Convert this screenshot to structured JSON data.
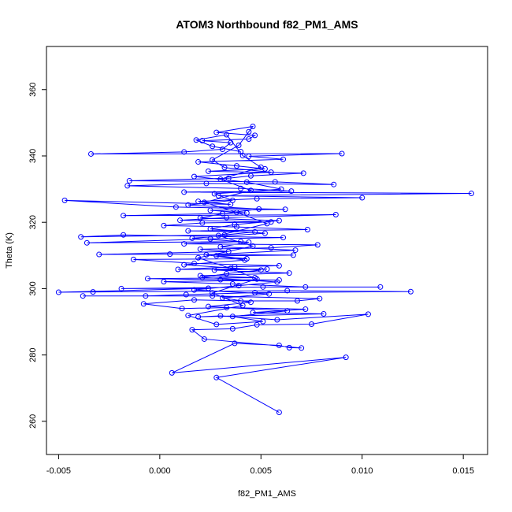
{
  "chart_data": {
    "type": "scatter",
    "title": "ATOM3 Northbound f82_PM1_AMS",
    "xlabel": "f82_PM1_AMS",
    "ylabel": "Theta (K)",
    "xlim": [
      -0.0056,
      0.0162
    ],
    "ylim": [
      250,
      373
    ],
    "xticks": [
      -0.005,
      0.0,
      0.005,
      0.01,
      0.015
    ],
    "xtick_labels": [
      "-0.005",
      "0.000",
      "0.005",
      "0.010",
      "0.015"
    ],
    "yticks": [
      260,
      280,
      300,
      320,
      340,
      360
    ],
    "ytick_labels": [
      "260",
      "280",
      "300",
      "320",
      "340",
      "360"
    ],
    "grid": false,
    "connect_points": true,
    "series": [
      {
        "color": "#0000ff",
        "marker": "open-circle",
        "points": [
          [
            0.0059,
            262.7
          ],
          [
            0.0028,
            273.2
          ],
          [
            0.0092,
            279.3
          ],
          [
            0.0006,
            274.6
          ],
          [
            0.0037,
            283.5
          ],
          [
            0.0059,
            282.9
          ],
          [
            0.0064,
            282.2
          ],
          [
            0.007,
            282.1
          ],
          [
            0.0022,
            284.8
          ],
          [
            0.0016,
            287.6
          ],
          [
            0.0036,
            287.9
          ],
          [
            0.0048,
            289.1
          ],
          [
            0.0075,
            289.3
          ],
          [
            0.0103,
            292.3
          ],
          [
            0.0058,
            290.6
          ],
          [
            0.003,
            291.8
          ],
          [
            0.0019,
            291.5
          ],
          [
            0.0081,
            292.4
          ],
          [
            0.0046,
            292.8
          ],
          [
            0.0072,
            293.8
          ],
          [
            0.0033,
            294.3
          ],
          [
            0.0011,
            294.0
          ],
          [
            -0.0008,
            295.4
          ],
          [
            0.0017,
            296.6
          ],
          [
            0.004,
            296.3
          ],
          [
            0.0068,
            296.3
          ],
          [
            0.0079,
            297.0
          ],
          [
            0.0026,
            297.8
          ],
          [
            -0.0038,
            297.8
          ],
          [
            -0.0007,
            297.8
          ],
          [
            0.0013,
            298.2
          ],
          [
            0.0047,
            298.8
          ],
          [
            0.0124,
            299.1
          ],
          [
            0.0063,
            299.4
          ],
          [
            -0.0033,
            299.0
          ],
          [
            -0.005,
            298.9
          ],
          [
            0.0024,
            300.1
          ],
          [
            -0.0019,
            300.0
          ],
          [
            0.0051,
            300.5
          ],
          [
            0.0109,
            300.5
          ],
          [
            0.0072,
            300.5
          ],
          [
            0.0036,
            301.4
          ],
          [
            0.0002,
            302.1
          ],
          [
            0.0059,
            302.6
          ],
          [
            0.003,
            302.7
          ],
          [
            -0.0006,
            303.0
          ],
          [
            0.0047,
            303.3
          ],
          [
            0.002,
            303.9
          ],
          [
            0.0064,
            304.7
          ],
          [
            0.0027,
            305.6
          ],
          [
            0.0053,
            305.9
          ],
          [
            0.0009,
            305.8
          ],
          [
            0.0037,
            306.6
          ],
          [
            0.0059,
            306.9
          ],
          [
            0.0017,
            307.6
          ],
          [
            -0.0013,
            308.8
          ],
          [
            0.0043,
            309.0
          ],
          [
            0.0028,
            309.9
          ],
          [
            0.0066,
            310.1
          ],
          [
            0.0005,
            310.4
          ],
          [
            -0.003,
            310.3
          ],
          [
            0.0034,
            311.2
          ],
          [
            0.002,
            311.9
          ],
          [
            0.0055,
            312.3
          ],
          [
            0.0078,
            313.2
          ],
          [
            0.0012,
            313.5
          ],
          [
            0.004,
            314.2
          ],
          [
            -0.0036,
            313.8
          ],
          [
            0.0025,
            315.0
          ],
          [
            0.0061,
            315.4
          ],
          [
            -0.0018,
            316.2
          ],
          [
            -0.0039,
            315.6
          ],
          [
            0.0032,
            316.2
          ],
          [
            0.0047,
            317.1
          ],
          [
            0.0014,
            317.4
          ],
          [
            0.0073,
            317.8
          ],
          [
            0.0038,
            318.6
          ],
          [
            0.0002,
            319.0
          ],
          [
            0.0021,
            319.8
          ],
          [
            0.0055,
            320.1
          ],
          [
            0.001,
            320.6
          ],
          [
            0.0033,
            321.4
          ],
          [
            0.0087,
            322.3
          ],
          [
            -0.0018,
            322.0
          ],
          [
            0.0043,
            322.8
          ],
          [
            0.0025,
            323.6
          ],
          [
            0.0062,
            323.9
          ],
          [
            0.0008,
            324.6
          ],
          [
            -0.0047,
            326.6
          ],
          [
            0.0035,
            325.4
          ],
          [
            0.0019,
            326.3
          ],
          [
            0.0048,
            327.1
          ],
          [
            0.01,
            327.4
          ],
          [
            0.0029,
            328.0
          ],
          [
            0.0154,
            328.7
          ],
          [
            0.0012,
            329.1
          ],
          [
            0.0065,
            329.4
          ],
          [
            0.004,
            330.2
          ],
          [
            -0.0016,
            331.0
          ],
          [
            0.0023,
            331.7
          ],
          [
            0.0086,
            331.4
          ],
          [
            0.0057,
            332.2
          ],
          [
            -0.0015,
            332.5
          ],
          [
            0.0034,
            333.3
          ],
          [
            0.0045,
            334.0
          ],
          [
            0.0071,
            334.8
          ],
          [
            0.0024,
            335.4
          ],
          [
            0.0052,
            336.1
          ],
          [
            0.0038,
            337.0
          ],
          [
            0.0019,
            338.2
          ],
          [
            0.0061,
            339.0
          ],
          [
            0.0044,
            339.9
          ],
          [
            0.009,
            340.7
          ],
          [
            -0.0034,
            340.6
          ],
          [
            0.0012,
            341.2
          ],
          [
            0.0031,
            342.0
          ],
          [
            0.0035,
            344.0
          ],
          [
            0.0021,
            344.6
          ],
          [
            0.0044,
            345.1
          ],
          [
            0.0047,
            346.2
          ],
          [
            0.0028,
            347.1
          ],
          [
            0.0046,
            348.9
          ],
          [
            0.0044,
            347.3
          ],
          [
            0.0039,
            343.2
          ],
          [
            0.0026,
            338.8
          ],
          [
            0.0032,
            336.5
          ],
          [
            0.0055,
            335.1
          ],
          [
            0.0017,
            333.8
          ],
          [
            0.0043,
            332.1
          ],
          [
            0.006,
            330.0
          ],
          [
            0.0027,
            328.6
          ],
          [
            0.0036,
            326.6
          ],
          [
            0.0014,
            325.2
          ],
          [
            0.0049,
            324.0
          ],
          [
            0.0031,
            322.6
          ],
          [
            0.002,
            321.3
          ],
          [
            0.0059,
            320.5
          ],
          [
            0.0037,
            319.3
          ],
          [
            0.0025,
            318.0
          ],
          [
            0.0052,
            316.7
          ],
          [
            0.0016,
            315.2
          ],
          [
            0.0044,
            314.0
          ],
          [
            0.003,
            312.6
          ],
          [
            0.0067,
            311.6
          ],
          [
            0.0023,
            310.2
          ],
          [
            0.0042,
            308.6
          ],
          [
            0.0012,
            307.2
          ],
          [
            0.005,
            305.6
          ],
          [
            0.0033,
            304.5
          ],
          [
            0.0021,
            303.4
          ],
          [
            0.0058,
            302.0
          ],
          [
            0.0039,
            300.9
          ],
          [
            0.0017,
            299.6
          ],
          [
            0.0054,
            298.4
          ],
          [
            0.0031,
            297.2
          ],
          [
            0.0045,
            295.9
          ],
          [
            0.0024,
            294.6
          ],
          [
            0.0063,
            293.3
          ],
          [
            0.0036,
            291.6
          ],
          [
            0.0051,
            290.1
          ],
          [
            0.0028,
            289.2
          ],
          [
            0.0014,
            291.9
          ],
          [
            0.0041,
            294.9
          ],
          [
            0.0026,
            298.7
          ],
          [
            0.0048,
            302.9
          ],
          [
            0.0035,
            306.1
          ],
          [
            0.0019,
            309.3
          ],
          [
            0.0046,
            312.8
          ],
          [
            0.0029,
            316.0
          ],
          [
            0.0053,
            319.6
          ],
          [
            0.0038,
            323.0
          ],
          [
            0.0022,
            326.0
          ],
          [
            0.0045,
            329.6
          ],
          [
            0.003,
            333.0
          ],
          [
            0.005,
            336.6
          ],
          [
            0.0041,
            340.1
          ],
          [
            0.0033,
            346.4
          ],
          [
            0.0018,
            344.8
          ],
          [
            0.0026,
            342.9
          ],
          [
            0.004,
            341.3
          ]
        ]
      }
    ]
  }
}
